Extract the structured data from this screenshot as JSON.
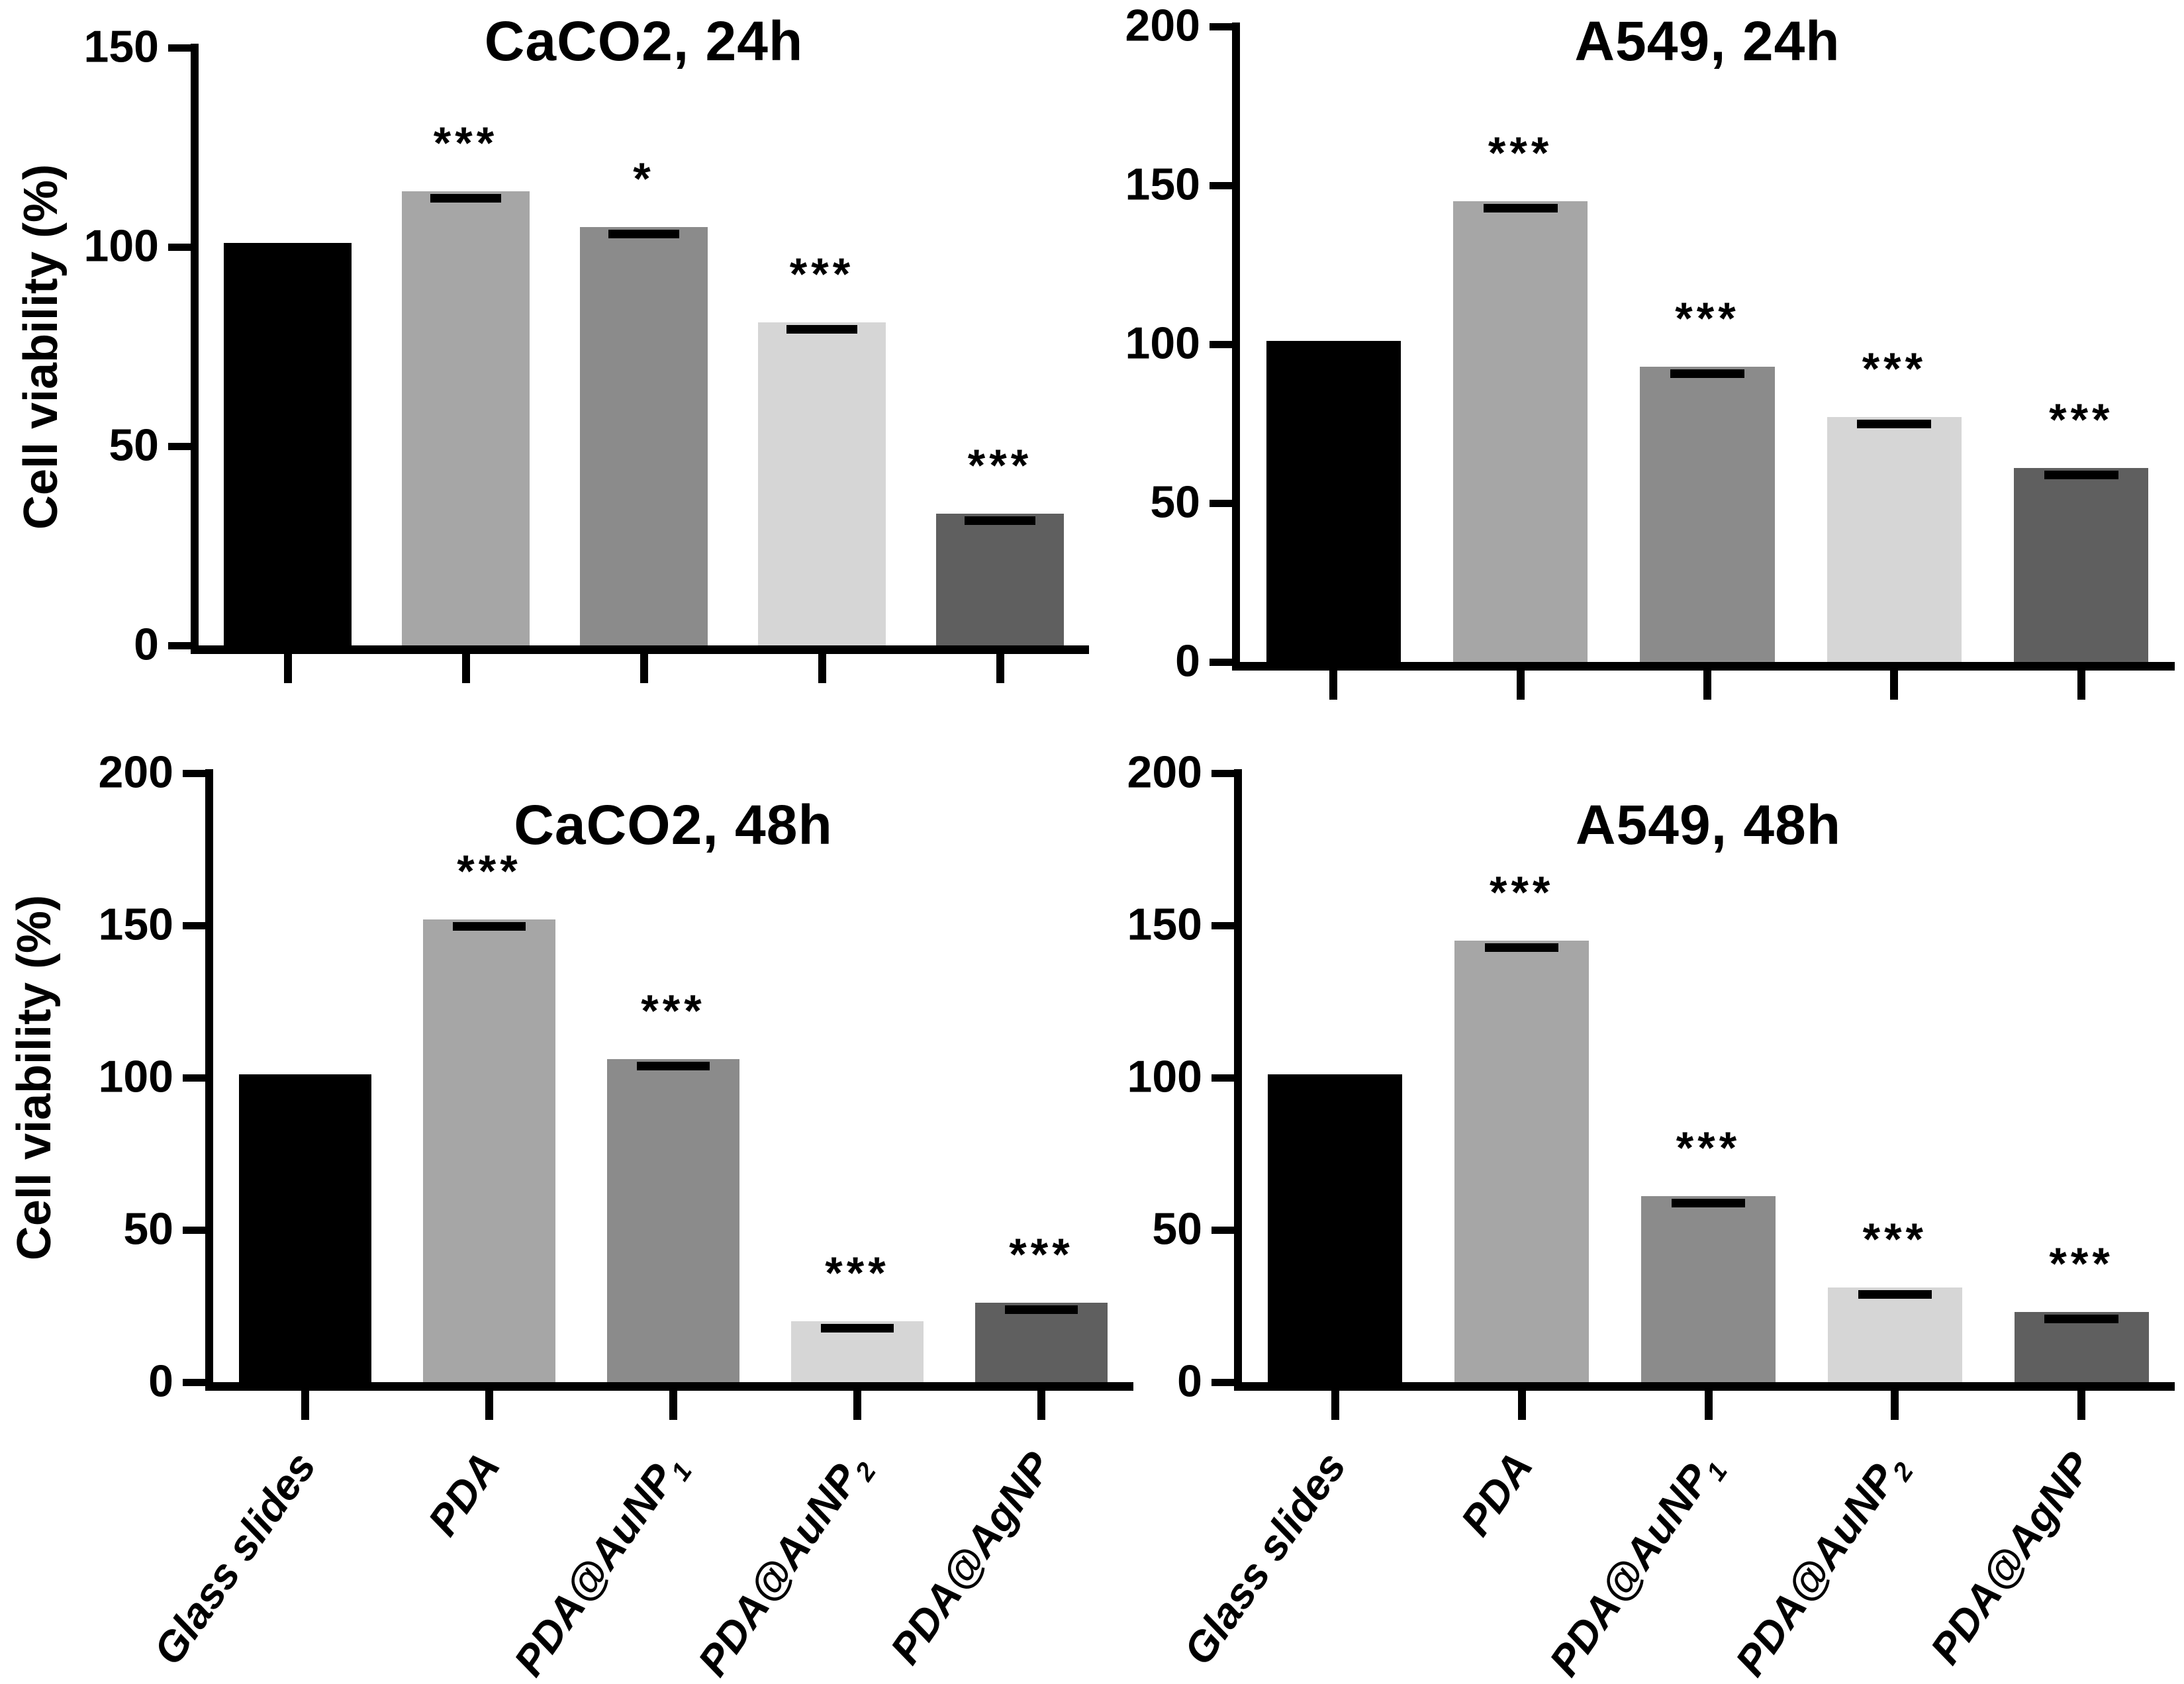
{
  "figure": {
    "background": "#ffffff",
    "axis_color": "#000000",
    "error_cap_color": "#000000",
    "y_axis_label": "Cell viability (%)",
    "bar_colors": [
      "#000000",
      "#a6a6a6",
      "#8b8b8b",
      "#d6d6d6",
      "#5f5f5f"
    ],
    "categories": [
      {
        "label": "Glass slides",
        "subscript": ""
      },
      {
        "label": "PDA",
        "subscript": ""
      },
      {
        "label": "PDA@AuNP",
        "subscript": "1"
      },
      {
        "label": "PDA@AuNP",
        "subscript": "2"
      },
      {
        "label": "PDA@AgNP",
        "subscript": ""
      }
    ]
  },
  "chart_data": [
    {
      "type": "bar",
      "title": "CaCO2, 24h",
      "cell_line": "CaCO2",
      "timepoint": "24h",
      "xlabel": "",
      "ylabel": "Cell viability (%)",
      "categories": [
        "Glass slides",
        "PDA",
        "PDA@AuNP1",
        "PDA@AuNP2",
        "PDA@AgNP"
      ],
      "values": [
        101,
        114,
        105,
        81,
        33
      ],
      "significance": [
        "",
        "***",
        "*",
        "***",
        "***"
      ],
      "ylim": [
        0,
        150
      ],
      "yticks": [
        0,
        50,
        100,
        150
      ],
      "grid": false,
      "legend": "none"
    },
    {
      "type": "bar",
      "title": "A549, 24h",
      "cell_line": "A549",
      "timepoint": "24h",
      "xlabel": "",
      "ylabel": "",
      "categories": [
        "Glass slides",
        "PDA",
        "PDA@AuNP1",
        "PDA@AuNP2",
        "PDA@AgNP"
      ],
      "values": [
        101,
        145,
        93,
        77,
        61
      ],
      "significance": [
        "",
        "***",
        "***",
        "***",
        "***"
      ],
      "ylim": [
        0,
        200
      ],
      "yticks": [
        0,
        50,
        100,
        150,
        200
      ],
      "grid": false,
      "legend": "none"
    },
    {
      "type": "bar",
      "title": "CaCO2, 48h",
      "cell_line": "CaCO2",
      "timepoint": "48h",
      "xlabel": "",
      "ylabel": "Cell viability (%)",
      "categories": [
        "Glass slides",
        "PDA",
        "PDA@AuNP1",
        "PDA@AuNP2",
        "PDA@AgNP"
      ],
      "values": [
        101,
        152,
        106,
        20,
        26
      ],
      "significance": [
        "",
        "***",
        "***",
        "***",
        "***"
      ],
      "ylim": [
        0,
        200
      ],
      "yticks": [
        0,
        50,
        100,
        150,
        200
      ],
      "grid": false,
      "legend": "none"
    },
    {
      "type": "bar",
      "title": "A549, 48h",
      "cell_line": "A549",
      "timepoint": "48h",
      "xlabel": "",
      "ylabel": "",
      "categories": [
        "Glass slides",
        "PDA",
        "PDA@AuNP1",
        "PDA@AuNP2",
        "PDA@AgNP"
      ],
      "values": [
        101,
        145,
        61,
        31,
        23
      ],
      "significance": [
        "",
        "***",
        "***",
        "***",
        "***"
      ],
      "ylim": [
        0,
        200
      ],
      "yticks": [
        0,
        50,
        100,
        150,
        200
      ],
      "grid": false,
      "legend": "none"
    }
  ]
}
